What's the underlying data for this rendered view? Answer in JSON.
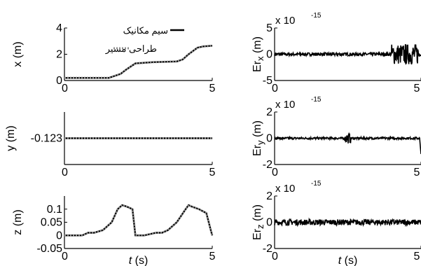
{
  "colors": {
    "actual": "#000000",
    "design": "#8c8c8c",
    "error": "#000000"
  },
  "chart_data": [
    {
      "id": "x",
      "type": "line",
      "ylabel": "x (m)",
      "xlabel": "",
      "xlim": [
        0,
        5
      ],
      "ylim": [
        0,
        4
      ],
      "xticks": [
        "0",
        "5"
      ],
      "yticks": [
        "0",
        "2",
        "4"
      ],
      "legend": {
        "position": "top",
        "entries": [
          {
            "label": "سیم مکانیک",
            "style": "solid"
          },
          {
            "label": "طراحی مسیر",
            "style": "dotted"
          }
        ]
      },
      "series": [
        {
          "name": "سیم مکانیک",
          "style": "solid",
          "x": [
            0,
            1.5,
            1.9,
            2.1,
            2.4,
            3.0,
            3.8,
            4.0,
            4.2,
            4.5,
            4.7,
            5.0
          ],
          "y": [
            0.2,
            0.2,
            0.5,
            0.85,
            1.3,
            1.4,
            1.45,
            1.6,
            2.0,
            2.5,
            2.6,
            2.65
          ]
        },
        {
          "name": "طراحی مسیر",
          "style": "dotted",
          "x": [
            0,
            1.5,
            1.9,
            2.1,
            2.4,
            3.0,
            3.8,
            4.0,
            4.2,
            4.5,
            4.7,
            5.0
          ],
          "y": [
            0.2,
            0.2,
            0.5,
            0.85,
            1.3,
            1.4,
            1.45,
            1.6,
            2.0,
            2.5,
            2.6,
            2.65
          ]
        }
      ]
    },
    {
      "id": "y",
      "type": "line",
      "ylabel": "y (m)",
      "xlabel": "",
      "xlim": [
        0,
        5
      ],
      "ylim": [
        -0.124,
        -0.122
      ],
      "xticks": [
        "0",
        "5"
      ],
      "yticks": [
        "-0.123"
      ],
      "series": [
        {
          "name": "",
          "style": "solid",
          "x": [
            0,
            5
          ],
          "y": [
            -0.123,
            -0.123
          ]
        },
        {
          "name": "",
          "style": "dotted",
          "x": [
            0,
            5
          ],
          "y": [
            -0.123,
            -0.123
          ]
        }
      ]
    },
    {
      "id": "z",
      "type": "line",
      "ylabel": "z (m)",
      "xlabel": "t (s)",
      "xlim": [
        0,
        5
      ],
      "ylim": [
        -0.05,
        0.15
      ],
      "xticks": [
        "0",
        "5"
      ],
      "yticks": [
        "-0.05",
        "0",
        "0.05",
        "0.1"
      ],
      "series": [
        {
          "name": "",
          "style": "solid",
          "x": [
            0,
            0.6,
            0.8,
            1.0,
            1.3,
            1.6,
            1.8,
            1.95,
            2.1,
            2.3,
            2.4,
            2.7,
            3.1,
            3.3,
            3.5,
            3.8,
            4.1,
            4.2,
            4.3,
            4.55,
            4.8,
            4.95,
            5.0
          ],
          "y": [
            0,
            0,
            0.01,
            0.01,
            0.02,
            0.05,
            0.1,
            0.115,
            0.11,
            0.1,
            0,
            0,
            0.01,
            0.01,
            0.02,
            0.05,
            0.1,
            0.115,
            0.11,
            0.1,
            0.085,
            0.02,
            0
          ]
        },
        {
          "name": "",
          "style": "dotted",
          "x": [
            0,
            0.6,
            0.8,
            1.0,
            1.3,
            1.6,
            1.8,
            1.95,
            2.1,
            2.3,
            2.4,
            2.7,
            3.1,
            3.3,
            3.5,
            3.8,
            4.1,
            4.2,
            4.3,
            4.55,
            4.8,
            4.95,
            5.0
          ],
          "y": [
            0,
            0,
            0.01,
            0.01,
            0.02,
            0.05,
            0.1,
            0.115,
            0.11,
            0.1,
            0,
            0,
            0.01,
            0.01,
            0.02,
            0.05,
            0.1,
            0.115,
            0.11,
            0.1,
            0.085,
            0.02,
            0
          ]
        }
      ]
    },
    {
      "id": "erx",
      "type": "line",
      "ylabel": "Er_x (m)",
      "xlabel": "",
      "exponent": "x 10",
      "exponent_power": "-15",
      "xlim": [
        0,
        5
      ],
      "ylim": [
        -5,
        5
      ],
      "xticks": [
        "0",
        "5"
      ],
      "yticks": [
        "-5",
        "0",
        "5"
      ],
      "noise": {
        "base": 0.3,
        "burst_start": 4.0,
        "burst_end": 4.95,
        "burst": 2.0
      }
    },
    {
      "id": "ery",
      "type": "line",
      "ylabel": "Er_y (m)",
      "xlabel": "",
      "exponent": "x 10",
      "exponent_power": "-15",
      "xlim": [
        0,
        5
      ],
      "ylim": [
        -2,
        2
      ],
      "xticks": [
        "0",
        "5"
      ],
      "yticks": [
        "-2",
        "0",
        "2"
      ],
      "noise": {
        "base": 0.08,
        "burst_start": 2.4,
        "burst_end": 2.6,
        "burst": 0.4,
        "end_drop": -1.2
      }
    },
    {
      "id": "erz",
      "type": "line",
      "ylabel": "Er_z (m)",
      "xlabel": "t (s)",
      "exponent": "x 10",
      "exponent_power": "-15",
      "xlim": [
        0,
        5
      ],
      "ylim": [
        -2,
        2
      ],
      "xticks": [
        "0",
        "5"
      ],
      "yticks": [
        "-2",
        "0",
        "2"
      ],
      "noise": {
        "base": 0.22,
        "burst_start": 0,
        "burst_end": 0,
        "burst": 0
      }
    }
  ]
}
